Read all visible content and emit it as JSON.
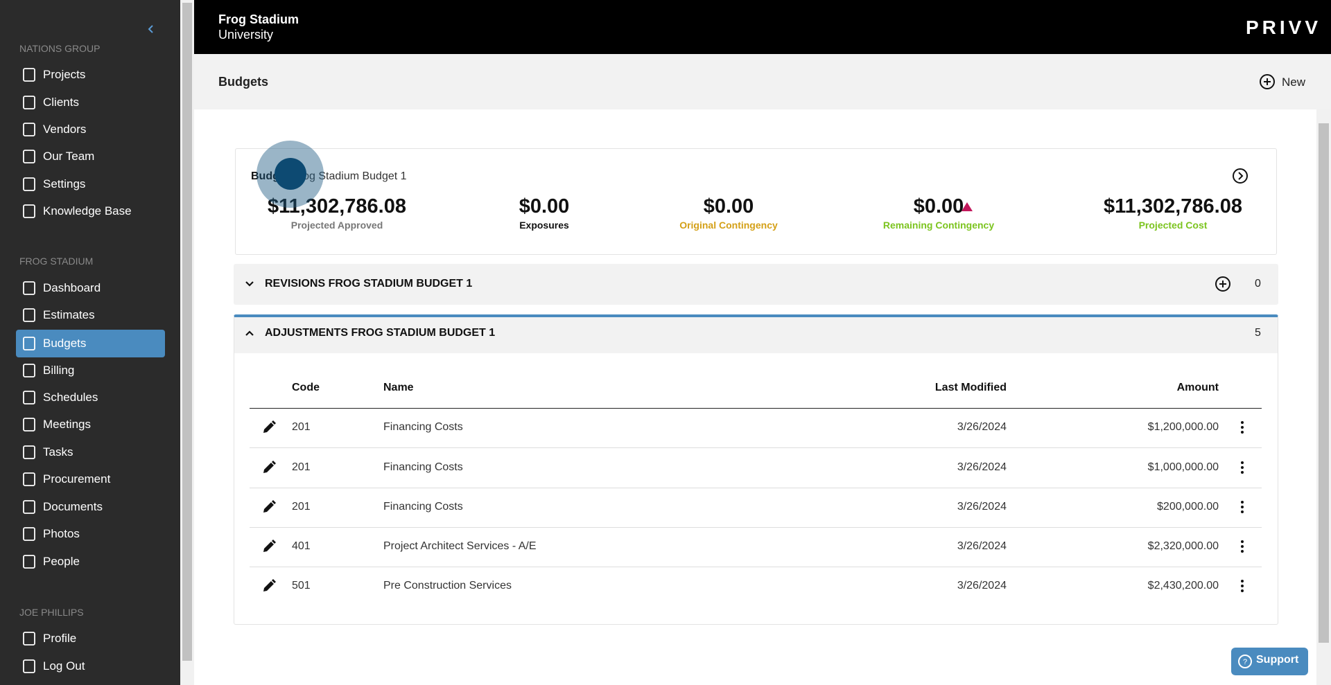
{
  "header": {
    "title": "Frog Stadium",
    "subtitle": "University",
    "brand": "PRIVV"
  },
  "sidebar": {
    "sections": [
      {
        "title": "NATIONS GROUP",
        "items": [
          "Projects",
          "Clients",
          "Vendors",
          "Our Team",
          "Settings",
          "Knowledge Base"
        ]
      },
      {
        "title": "FROG STADIUM",
        "items": [
          "Dashboard",
          "Estimates",
          "Budgets",
          "Billing",
          "Schedules",
          "Meetings",
          "Tasks",
          "Procurement",
          "Documents",
          "Photos",
          "People"
        ]
      },
      {
        "title": "JOE PHILLIPS",
        "items": [
          "Profile",
          "Log Out"
        ]
      }
    ],
    "active": "Budgets"
  },
  "toolbar": {
    "title": "Budgets",
    "new_button": "New"
  },
  "summary": {
    "label": "Budget",
    "name": "Frog Stadium Budget 1",
    "metrics": [
      {
        "value": "$11,302,786.08",
        "label": "Projected Approved"
      },
      {
        "value": "$0.00",
        "label": "Exposures"
      },
      {
        "value": "$0.00",
        "label": "Original Contingency"
      },
      {
        "value": "$0.00",
        "label": "Remaining Contingency"
      },
      {
        "value": "$11,302,786.08",
        "label": "Projected Cost"
      }
    ]
  },
  "revisions": {
    "title": "REVISIONS FROG STADIUM BUDGET 1",
    "count": "0"
  },
  "adjustments": {
    "title": "ADJUSTMENTS FROG STADIUM BUDGET 1",
    "count": "5",
    "table": {
      "columns": [
        "Code",
        "Name",
        "Last Modified",
        "Amount"
      ],
      "rows": [
        [
          "201",
          "Financing Costs",
          "3/26/2024",
          "$1,200,000.00"
        ],
        [
          "201",
          "Financing Costs",
          "3/26/2024",
          "$1,000,000.00"
        ],
        [
          "201",
          "Financing Costs",
          "3/26/2024",
          "$200,000.00"
        ],
        [
          "401",
          "Project Architect Services - A/E",
          "3/26/2024",
          "$2,320,000.00"
        ],
        [
          "501",
          "Pre Construction Services",
          "3/26/2024",
          "$2,430,200.00"
        ]
      ]
    }
  },
  "support": "Support"
}
